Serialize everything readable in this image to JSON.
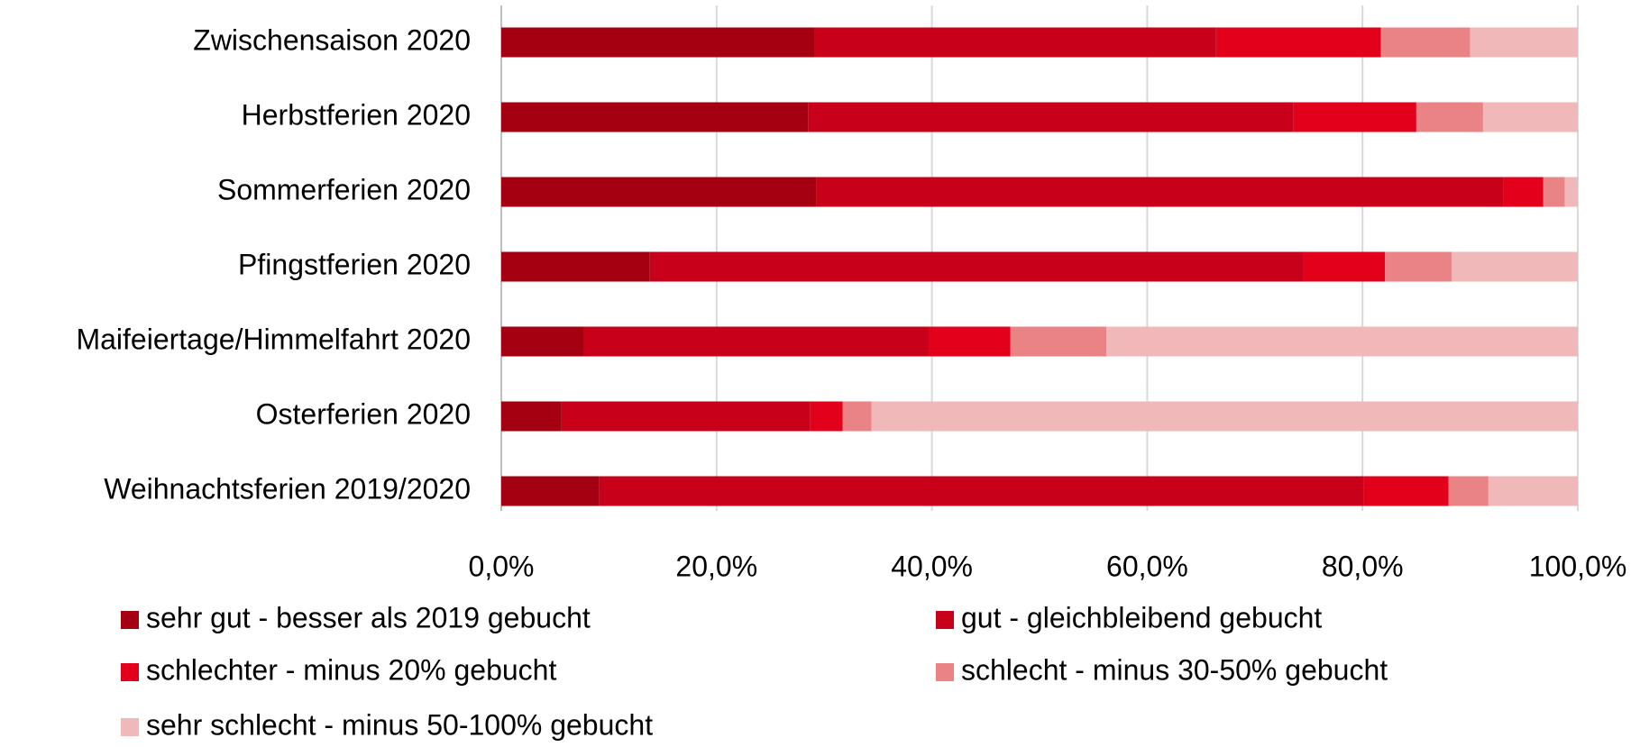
{
  "chart_data": {
    "type": "stacked_barh",
    "categories": [
      "Zwischensaison 2020",
      "Herbstferien 2020",
      "Sommerferien 2020",
      "Pfingstferien 2020",
      "Maifeiertage/Himmelfahrt 2020",
      "Osterferien 2020",
      "Weihnachtsferien 2019/2020"
    ],
    "series": [
      {
        "name": "sehr gut - besser als 2019 gebucht",
        "color": "#a50012",
        "values": [
          29.1,
          28.5,
          29.3,
          13.8,
          7.7,
          5.6,
          9.1
        ]
      },
      {
        "name": "gut - gleichbleibend gebucht",
        "color": "#c8001a",
        "values": [
          37.3,
          45.1,
          63.8,
          60.7,
          32.0,
          23.1,
          71.0
        ]
      },
      {
        "name": "schlechter - minus 20% gebucht",
        "color": "#e2001a",
        "values": [
          15.3,
          11.4,
          3.7,
          7.6,
          7.6,
          3.0,
          7.9
        ]
      },
      {
        "name": "schlecht - minus 30-50% gebucht",
        "color": "#ea8385",
        "values": [
          8.3,
          6.2,
          2.0,
          6.2,
          8.9,
          2.7,
          3.7
        ]
      },
      {
        "name": "sehr schlecht - minus 50-100% gebucht",
        "color": "#f1b8b9",
        "values": [
          10.0,
          8.8,
          1.2,
          11.7,
          43.8,
          65.6,
          8.3
        ]
      }
    ],
    "xlim": [
      0,
      100
    ],
    "xticks": [
      {
        "value": 0,
        "label": "0,0%"
      },
      {
        "value": 20,
        "label": "20,0%"
      },
      {
        "value": 40,
        "label": "40,0%"
      },
      {
        "value": 60,
        "label": "60,0%"
      },
      {
        "value": 80,
        "label": "80,0%"
      },
      {
        "value": 100,
        "label": "100,0%"
      }
    ],
    "grid": true
  }
}
